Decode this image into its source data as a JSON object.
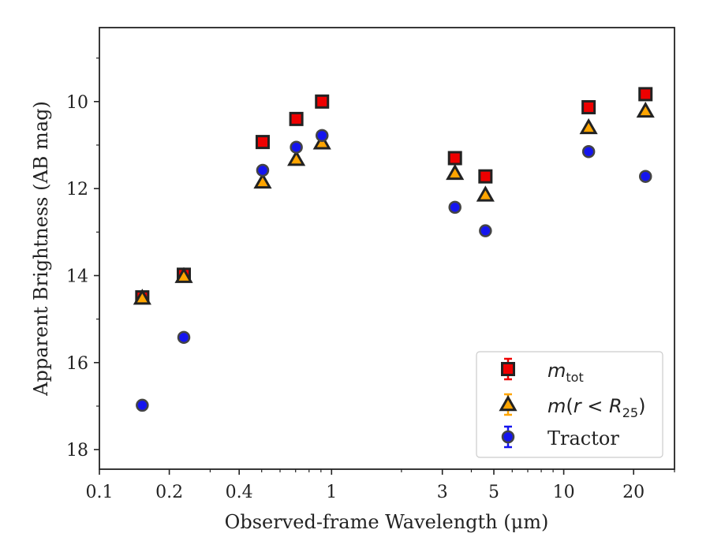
{
  "chart_data": {
    "type": "scatter",
    "xlabel": "Observed-frame Wavelength (μm)",
    "ylabel": "Apparent Brightness (AB mag)",
    "x_scale": "log",
    "xlim": [
      0.1,
      30
    ],
    "ylim": [
      18.45,
      8.3
    ],
    "y_inverted": true,
    "x_ticks": [
      0.1,
      0.2,
      0.4,
      1,
      3,
      5,
      10,
      20
    ],
    "x_tick_labels": [
      "0.1",
      "0.2",
      "0.4",
      "1",
      "3",
      "5",
      "10",
      "20"
    ],
    "y_ticks": [
      10,
      12,
      14,
      16,
      18
    ],
    "y_tick_labels": [
      "10",
      "12",
      "14",
      "16",
      "18"
    ],
    "grid": false,
    "legend_position": "lower-right",
    "series": [
      {
        "name": "m_tot",
        "legend_main": "m",
        "legend_sub": "tot",
        "marker": "square",
        "color": "#ee0000",
        "x": [
          0.153,
          0.231,
          0.505,
          0.705,
          0.91,
          3.4,
          4.6,
          12.8,
          22.5
        ],
        "y": [
          14.5,
          13.98,
          10.93,
          10.4,
          10.0,
          11.3,
          11.72,
          10.13,
          9.83
        ]
      },
      {
        "name": "m(r < R_25)",
        "legend_main": "m(r < R",
        "legend_sub": "25",
        "legend_close": ")",
        "marker": "triangle",
        "color": "#ffa500",
        "x": [
          0.153,
          0.231,
          0.505,
          0.705,
          0.91,
          3.4,
          4.6,
          12.8,
          22.5
        ],
        "y": [
          14.52,
          14.02,
          11.85,
          11.33,
          10.95,
          11.65,
          12.15,
          10.6,
          10.22
        ]
      },
      {
        "name": "Tractor",
        "marker": "circle",
        "color": "#1515ee",
        "x": [
          0.153,
          0.231,
          0.505,
          0.705,
          0.91,
          3.4,
          4.6,
          12.8,
          22.5
        ],
        "y": [
          16.98,
          15.42,
          11.58,
          11.05,
          10.78,
          12.43,
          12.97,
          11.15,
          11.72
        ]
      }
    ]
  }
}
